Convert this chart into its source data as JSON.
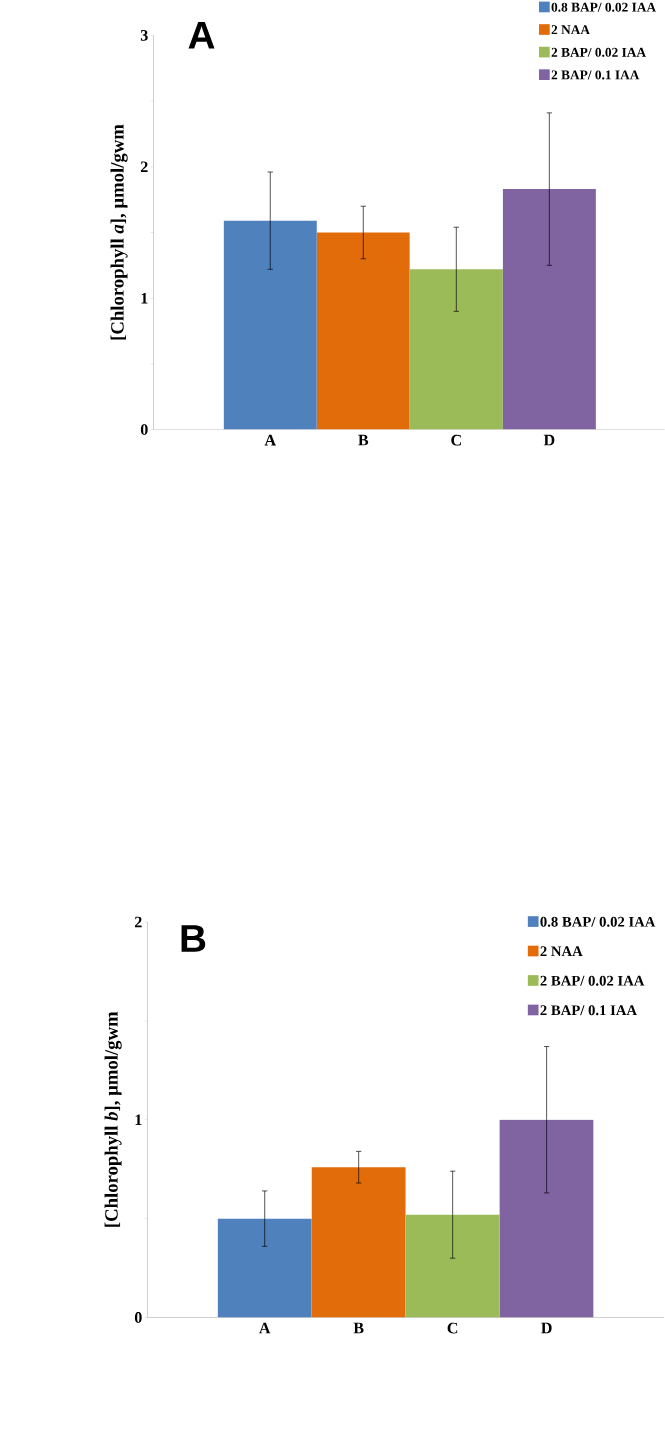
{
  "chart_data": [
    {
      "type": "bar",
      "title": "A",
      "ylabel": "[Chlorophyll *a*], µmol/gwm",
      "categories": [
        "A",
        "B",
        "C",
        "D"
      ],
      "series": [
        {
          "name": "0.8 BAP/ 0.02 IAA",
          "color": "#4f81bd",
          "values": [
            1.59,
            null,
            null,
            null
          ],
          "errors": [
            0.37,
            null,
            null,
            null
          ]
        },
        {
          "name": "2 NAA",
          "color": "#e36c0a",
          "values": [
            null,
            1.5,
            null,
            null
          ],
          "errors": [
            null,
            0.2,
            null,
            null
          ]
        },
        {
          "name": "2 BAP/ 0.02 IAA",
          "color": "#9bbb59",
          "values": [
            null,
            null,
            1.22,
            null
          ],
          "errors": [
            null,
            null,
            0.32,
            null
          ]
        },
        {
          "name": "2 BAP/ 0.1 IAA",
          "color": "#8064a2",
          "values": [
            null,
            null,
            null,
            1.83
          ],
          "errors": [
            null,
            null,
            null,
            0.58
          ]
        }
      ],
      "ylim": [
        0,
        3
      ],
      "yticks": [
        0,
        {
          "value": 0.5,
          "label": null
        },
        1,
        {
          "value": 1.5,
          "label": null
        },
        2,
        {
          "value": 2.5,
          "label": null
        },
        3
      ],
      "grid": false,
      "legend": "top right"
    },
    {
      "type": "bar",
      "title": "B",
      "ylabel": "[Chlorophyll *b*], µmol/gwm",
      "categories": [
        "A",
        "B",
        "C",
        "D"
      ],
      "series": [
        {
          "name": "0.8 BAP/ 0.02 IAA",
          "color": "#4f81bd",
          "values": [
            0.5,
            null,
            null,
            null
          ],
          "errors": [
            0.14,
            null,
            null,
            null
          ]
        },
        {
          "name": "2 NAA",
          "color": "#e36c0a",
          "values": [
            null,
            0.76,
            null,
            null
          ],
          "errors": [
            null,
            0.08,
            null,
            null
          ]
        },
        {
          "name": "2 BAP/ 0.02 IAA",
          "color": "#9bbb59",
          "values": [
            null,
            null,
            0.52,
            null
          ],
          "errors": [
            null,
            null,
            0.22,
            null
          ]
        },
        {
          "name": "2 BAP/ 0.1 IAA",
          "color": "#8064a2",
          "values": [
            null,
            null,
            null,
            1.0
          ],
          "errors": [
            null,
            null,
            null,
            0.37
          ]
        }
      ],
      "ylim": [
        0,
        2
      ],
      "yticks": [
        0,
        {
          "value": 0.5,
          "label": null
        },
        1,
        {
          "value": 1.5,
          "label": null
        },
        2
      ],
      "grid": false,
      "legend": "top right"
    }
  ]
}
